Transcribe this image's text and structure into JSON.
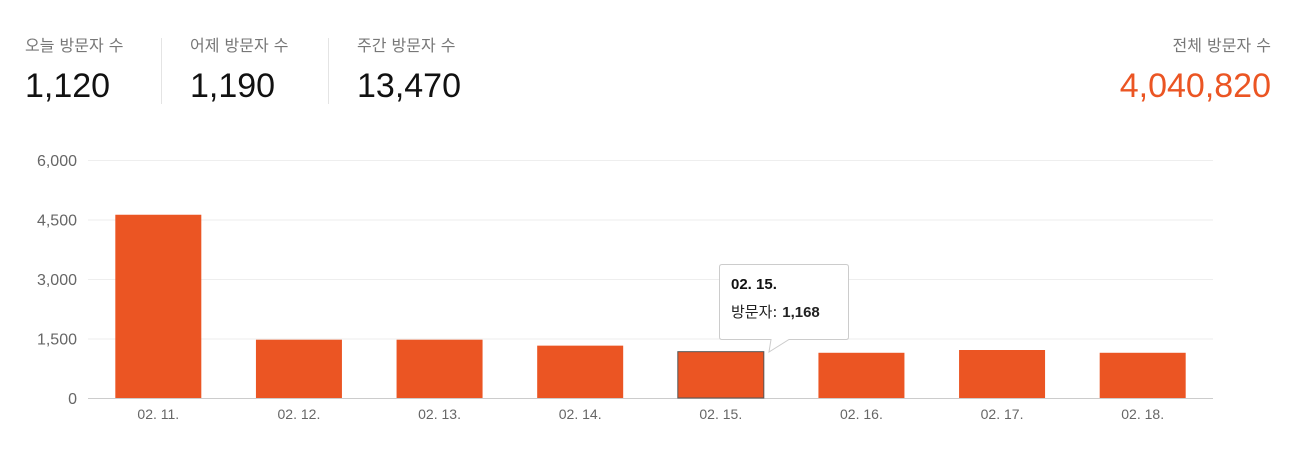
{
  "stats": {
    "today": {
      "label": "오늘 방문자 수",
      "value": "1,120"
    },
    "yesterday": {
      "label": "어제 방문자 수",
      "value": "1,190"
    },
    "weekly": {
      "label": "주간 방문자 수",
      "value": "13,470"
    },
    "total": {
      "label": "전체 방문자 수",
      "value": "4,040,820"
    }
  },
  "colors": {
    "accent": "#eb5523",
    "bar": "#eb5523",
    "highlight_border": "#555555",
    "grid": "#eeeeee",
    "axis": "#cccccc"
  },
  "tooltip": {
    "title": "02. 15.",
    "label": "방문자",
    "value": "1,168"
  },
  "chart_data": {
    "type": "bar",
    "categories": [
      "02. 11.",
      "02. 12.",
      "02. 13.",
      "02. 14.",
      "02. 15.",
      "02. 16.",
      "02. 17.",
      "02. 18."
    ],
    "values": [
      4620,
      1470,
      1470,
      1320,
      1168,
      1140,
      1210,
      1140
    ],
    "yticks": [
      "0",
      "1,500",
      "3,000",
      "4,500",
      "6,000"
    ],
    "ylim": [
      0,
      6000
    ],
    "highlighted_category": "02. 15.",
    "grid": true,
    "legend": "none"
  }
}
